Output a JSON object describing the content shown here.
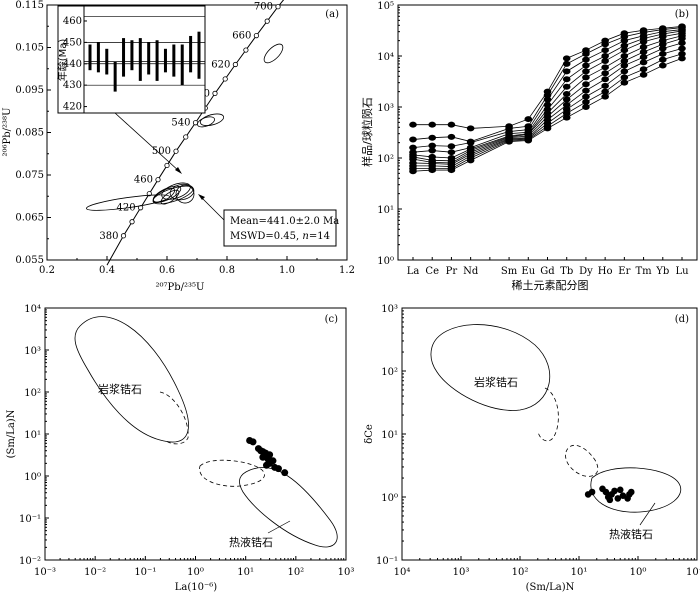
{
  "chart_data": [
    {
      "panel": "(a)",
      "type": "scatter",
      "xlabel": "²⁰⁷Pb/²³⁵U",
      "ylabel": "²⁰⁶Pb/²³⁸U",
      "xlim": [
        0.2,
        1.2
      ],
      "ylim": [
        0.055,
        0.115
      ],
      "x_ticks": [
        0.2,
        0.4,
        0.6,
        0.8,
        1.0,
        1.2
      ],
      "y_ticks": [
        0.055,
        0.065,
        0.075,
        0.085,
        0.095,
        0.105,
        0.115
      ],
      "x_tick_labels": [
        "0.2",
        "0.4",
        "0.6",
        "0.8",
        "1.0",
        "1.2"
      ],
      "y_tick_labels": [
        "0.055",
        "0.065",
        "0.075",
        "0.085",
        "0.095",
        "0.105",
        "0.115"
      ],
      "concordia_labels": [
        {
          "age": 380,
          "x": 0.455,
          "y": 0.0607
        },
        {
          "age": 420,
          "x": 0.512,
          "y": 0.0673
        },
        {
          "age": 460,
          "x": 0.57,
          "y": 0.0739
        },
        {
          "age": 500,
          "x": 0.63,
          "y": 0.0806
        },
        {
          "age": 540,
          "x": 0.695,
          "y": 0.0873
        },
        {
          "age": 580,
          "x": 0.76,
          "y": 0.0942
        },
        {
          "age": 620,
          "x": 0.828,
          "y": 0.101
        },
        {
          "age": 660,
          "x": 0.898,
          "y": 0.1078
        },
        {
          "age": 700,
          "x": 0.97,
          "y": 0.1146
        }
      ],
      "ellipses": [
        {
          "x": 0.47,
          "y": 0.0685,
          "rx": 0.14,
          "ry": 0.0012,
          "angle": -8
        },
        {
          "x": 0.62,
          "y": 0.0703,
          "rx": 0.07,
          "ry": 0.0015,
          "angle": -18
        },
        {
          "x": 0.6,
          "y": 0.0705,
          "rx": 0.05,
          "ry": 0.0013,
          "angle": -25
        },
        {
          "x": 0.63,
          "y": 0.0712,
          "rx": 0.05,
          "ry": 0.0016,
          "angle": -20
        },
        {
          "x": 0.59,
          "y": 0.0702,
          "rx": 0.04,
          "ry": 0.0011,
          "angle": -30
        },
        {
          "x": 0.65,
          "y": 0.071,
          "rx": 0.04,
          "ry": 0.0018,
          "angle": -10
        },
        {
          "x": 0.66,
          "y": 0.0705,
          "rx": 0.03,
          "ry": 0.0021,
          "angle": 0
        },
        {
          "x": 0.61,
          "y": 0.0698,
          "rx": 0.035,
          "ry": 0.001,
          "angle": -35
        },
        {
          "x": 0.75,
          "y": 0.088,
          "rx": 0.04,
          "ry": 0.0012,
          "angle": -15
        },
        {
          "x": 0.73,
          "y": 0.0875,
          "rx": 0.03,
          "ry": 0.001,
          "angle": -20
        },
        {
          "x": 0.955,
          "y": 0.1036,
          "rx": 0.04,
          "ry": 0.0013,
          "angle": -45
        }
      ],
      "inset": {
        "ylabel": "年龄(Ma)",
        "ylim": [
          417,
          467
        ],
        "y_ticks": [
          420,
          430,
          440,
          450,
          460
        ],
        "y_tick_labels": [
          "420",
          "430",
          "440",
          "450",
          "460"
        ],
        "mean_age": 441.0,
        "bars": [
          {
            "low": 437,
            "high": 449
          },
          {
            "low": 436,
            "high": 450
          },
          {
            "low": 435,
            "high": 447
          },
          {
            "low": 427,
            "high": 441
          },
          {
            "low": 434,
            "high": 452
          },
          {
            "low": 437,
            "high": 451
          },
          {
            "low": 432,
            "high": 452
          },
          {
            "low": 435,
            "high": 450
          },
          {
            "low": 432,
            "high": 451
          },
          {
            "low": 436,
            "high": 447
          },
          {
            "low": 434,
            "high": 449
          },
          {
            "low": 430,
            "high": 449
          },
          {
            "low": 436,
            "high": 453
          },
          {
            "low": 433,
            "high": 455
          }
        ]
      },
      "annotation": {
        "line1": "Mean=441.0±2.0 Ma",
        "line2_prefix": "MSWD=0.45, ",
        "line2_n": "n",
        "line2_suffix": "=14"
      }
    },
    {
      "panel": "(b)",
      "type": "line",
      "ylabel": "样品/球粒陨石",
      "xlabel": "稀土元素配分图",
      "yscale": "log",
      "ylim": [
        1,
        100000
      ],
      "y_ticks": [
        1,
        10,
        100,
        1000,
        10000,
        100000
      ],
      "y_tick_labels": [
        "10⁰",
        "10¹",
        "10²",
        "10³",
        "10⁴",
        "10⁵"
      ],
      "categories": [
        "La",
        "Ce",
        "Pr",
        "Nd",
        "Pm",
        "Sm",
        "Eu",
        "Gd",
        "Tb",
        "Dy",
        "Ho",
        "Er",
        "Tm",
        "Yb",
        "Lu"
      ],
      "category_labels": [
        "La",
        "Ce",
        "Pr",
        "Nd",
        "",
        "Sm",
        "Eu",
        "Gd",
        "Tb",
        "Dy",
        "Ho",
        "Er",
        "Tm",
        "Yb",
        "Lu"
      ],
      "series": [
        {
          "values": [
            450,
            450,
            450,
            380,
            null,
            420,
            580,
            2000,
            9000,
            13000,
            20000,
            28000,
            32000,
            35000,
            38000
          ]
        },
        {
          "values": [
            230,
            250,
            260,
            210,
            null,
            380,
            420,
            1700,
            7000,
            11000,
            17000,
            24000,
            29000,
            33000,
            36000
          ]
        },
        {
          "values": [
            160,
            175,
            170,
            200,
            null,
            330,
            360,
            1400,
            5000,
            8500,
            13000,
            20000,
            25000,
            30000,
            33000
          ]
        },
        {
          "values": [
            130,
            140,
            130,
            160,
            null,
            300,
            320,
            1100,
            3500,
            6500,
            10000,
            16000,
            22000,
            27000,
            31000
          ]
        },
        {
          "values": [
            115,
            105,
            100,
            150,
            null,
            270,
            300,
            900,
            2500,
            5000,
            8000,
            13000,
            19000,
            24000,
            28000
          ]
        },
        {
          "values": [
            105,
            90,
            88,
            140,
            null,
            260,
            290,
            760,
            1800,
            3800,
            6000,
            10000,
            15000,
            20000,
            25000
          ]
        },
        {
          "values": [
            95,
            82,
            80,
            130,
            null,
            250,
            270,
            650,
            1400,
            2800,
            4600,
            8000,
            12000,
            17000,
            22000
          ]
        },
        {
          "values": [
            80,
            78,
            75,
            120,
            null,
            240,
            250,
            560,
            1100,
            2100,
            3500,
            6500,
            9500,
            14000,
            18000
          ]
        },
        {
          "values": [
            70,
            70,
            68,
            110,
            null,
            230,
            240,
            480,
            900,
            1600,
            2600,
            5000,
            7500,
            11000,
            14000
          ]
        },
        {
          "values": [
            62,
            62,
            62,
            100,
            null,
            220,
            230,
            420,
            750,
            1250,
            2000,
            3800,
            5500,
            8500,
            11000
          ]
        },
        {
          "values": [
            55,
            58,
            58,
            90,
            null,
            210,
            220,
            380,
            620,
            1000,
            1600,
            3000,
            4300,
            6500,
            9000
          ]
        }
      ]
    },
    {
      "panel": "(c)",
      "type": "scatter",
      "xlabel": "La(10⁻⁶)",
      "ylabel": "(Sm/La)N",
      "xscale": "log",
      "yscale": "log",
      "xlim": [
        0.001,
        1000
      ],
      "ylim": [
        0.01,
        10000
      ],
      "x_ticks": [
        0.001,
        0.01,
        0.1,
        1,
        10,
        100,
        1000
      ],
      "x_tick_labels": [
        "10⁻³",
        "10⁻²",
        "10⁻¹",
        "10⁰",
        "10¹",
        "10²",
        "10³"
      ],
      "y_ticks": [
        0.01,
        0.1,
        1,
        10,
        100,
        1000,
        10000
      ],
      "y_tick_labels": [
        "10⁻²",
        "10⁻¹",
        "10⁰",
        "10¹",
        "10²",
        "10³",
        "10⁴"
      ],
      "fields": [
        {
          "name": "岩浆锆石",
          "kind": "solid"
        },
        {
          "name": "热液锆石",
          "kind": "solid"
        }
      ],
      "points": [
        [
          12,
          7.0
        ],
        [
          14,
          6.5
        ],
        [
          18,
          4.5
        ],
        [
          20,
          4.0
        ],
        [
          22,
          3.8
        ],
        [
          25,
          3.5
        ],
        [
          30,
          3.2
        ],
        [
          22,
          2.8
        ],
        [
          28,
          2.5
        ],
        [
          35,
          2.3
        ],
        [
          30,
          2.0
        ],
        [
          26,
          1.8
        ],
        [
          45,
          1.5
        ],
        [
          60,
          1.2
        ],
        [
          38,
          1.6
        ]
      ]
    },
    {
      "panel": "(d)",
      "type": "scatter",
      "xlabel": "(Sm/La)N",
      "ylabel": "δCe",
      "xscale": "log",
      "yscale": "log",
      "xlim": [
        10000,
        0.1
      ],
      "ylim": [
        0.1,
        1000
      ],
      "x_ticks": [
        10000,
        1000,
        100,
        10,
        1,
        0.1
      ],
      "x_tick_labels": [
        "10⁴",
        "10³",
        "10²",
        "10¹",
        "10⁰",
        "10⁻¹"
      ],
      "y_ticks": [
        0.1,
        1,
        10,
        100,
        1000
      ],
      "y_tick_labels": [
        "10⁻¹",
        "10⁰",
        "10¹",
        "10²",
        "10³"
      ],
      "fields": [
        {
          "name": "岩浆锆石",
          "kind": "solid"
        },
        {
          "name": "热液锆石",
          "kind": "solid"
        }
      ],
      "points": [
        [
          7,
          1.1
        ],
        [
          6,
          1.2
        ],
        [
          4,
          1.35
        ],
        [
          3.5,
          1.2
        ],
        [
          3.2,
          1.0
        ],
        [
          3.0,
          0.9
        ],
        [
          2.8,
          1.1
        ],
        [
          2.5,
          1.25
        ],
        [
          2.2,
          0.95
        ],
        [
          2.0,
          1.3
        ],
        [
          1.8,
          1.05
        ],
        [
          1.5,
          0.95
        ],
        [
          1.4,
          1.1
        ],
        [
          1.3,
          1.2
        ]
      ]
    }
  ]
}
